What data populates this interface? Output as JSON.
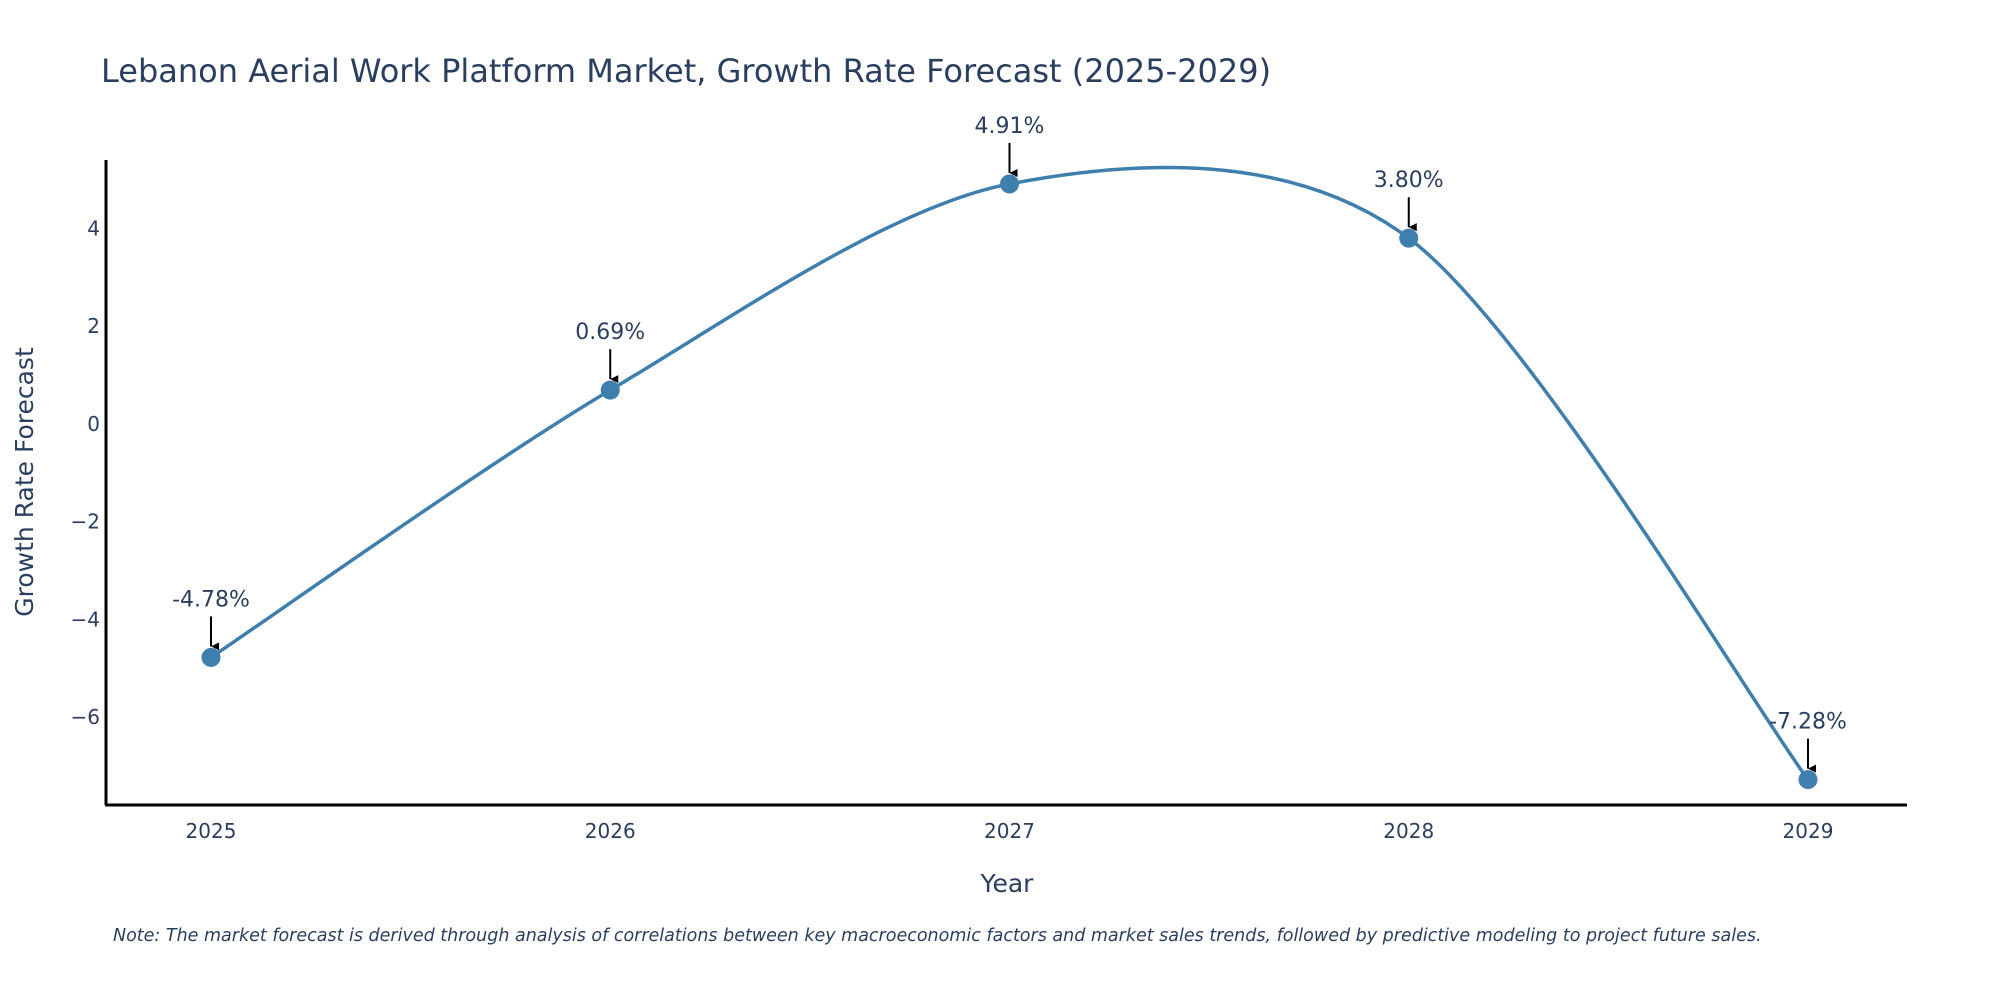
{
  "chart_data": {
    "type": "line",
    "title": "Lebanon Aerial Work Platform Market, Growth Rate Forecast (2025-2029)",
    "xlabel": "Year",
    "ylabel": "Growth Rate Forecast",
    "categories": [
      "2025",
      "2026",
      "2027",
      "2028",
      "2029"
    ],
    "values": [
      -4.78,
      0.69,
      4.91,
      3.8,
      -7.28
    ],
    "data_labels": [
      "-4.78%",
      "0.69%",
      "4.91%",
      "3.80%",
      "-7.28%"
    ],
    "yticks": [
      4,
      2,
      0,
      -2,
      -4,
      -6
    ],
    "ytick_labels": [
      "4",
      "2",
      "0",
      "−2",
      "−4",
      "−6"
    ],
    "ylim": [
      -7.8,
      5.4
    ],
    "grid": false,
    "line_color": "#3f7fae",
    "note": "Note: The market forecast is derived through analysis of correlations between key macroeconomic factors and market sales trends, followed by predictive modeling to project future sales."
  }
}
